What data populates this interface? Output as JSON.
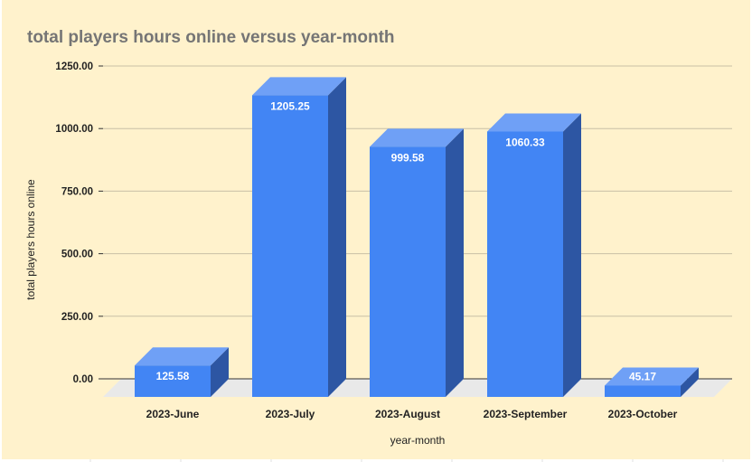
{
  "chart_data": {
    "type": "bar",
    "title": "total players hours online versus year-month",
    "xlabel": "year-month",
    "ylabel": "total players hours online",
    "categories": [
      "2023-June",
      "2023-July",
      "2023-August",
      "2023-September",
      "2023-October"
    ],
    "values": [
      125.58,
      1205.25,
      999.58,
      1060.33,
      45.17
    ],
    "value_labels": [
      "125.58",
      "1205.25",
      "999.58",
      "1060.33",
      "45.17"
    ],
    "yticks": [
      0,
      250,
      500,
      750,
      1000,
      1250
    ],
    "ytick_labels": [
      "0.00",
      "250.00",
      "500.00",
      "750.00",
      "1000.00",
      "1250.00"
    ],
    "ylim": [
      0,
      1250
    ],
    "grid": true,
    "legend": "none",
    "style": "3d",
    "colors": {
      "background": "#fff2cc",
      "bar_front": "#4285f4",
      "bar_top": "#6fa0f6",
      "bar_side": "#2d56a3",
      "floor": "#e9e9e9",
      "grid": "#c8c0a6",
      "title": "#757575",
      "text": "#222222"
    }
  }
}
